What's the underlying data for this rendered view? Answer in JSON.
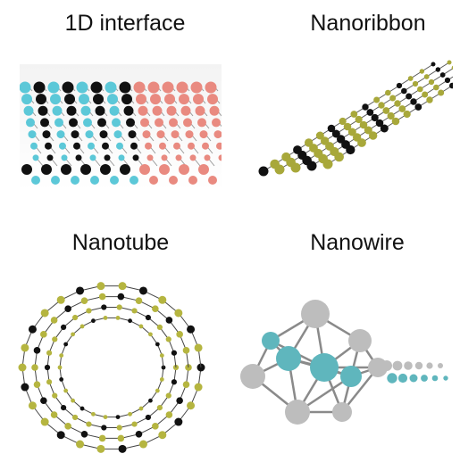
{
  "panels": [
    {
      "title": "1D interface",
      "colors": {
        "a": "#5cc8d8",
        "b": "#111111",
        "c": "#e98a80",
        "bond": "#9a9a9a"
      }
    },
    {
      "title": "Nanoribbon",
      "colors": {
        "a": "#a8a83a",
        "b": "#111111",
        "bond": "#555555"
      }
    },
    {
      "title": "Nanotube",
      "colors": {
        "a": "#b5b540",
        "b": "#111111",
        "bond": "#444444"
      }
    },
    {
      "title": "Nanowire",
      "colors": {
        "a": "#5fb6bd",
        "b": "#bdbdbd",
        "bond": "#8a8a8a"
      }
    }
  ]
}
